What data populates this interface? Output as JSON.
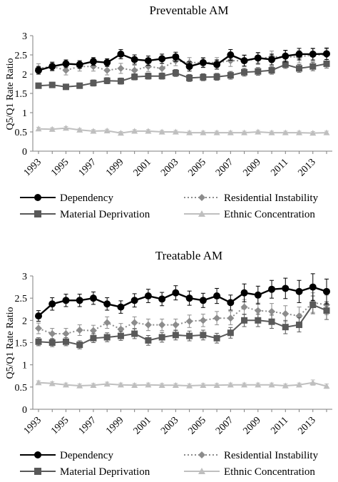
{
  "chart_data": [
    {
      "type": "line",
      "title": "Preventable AM",
      "ylabel": "Q5/Q1 Rate Ratio",
      "xlabel": "",
      "ylim": [
        0,
        3
      ],
      "yticks": [
        "0",
        "0.5",
        "1",
        "1.5",
        "2",
        "2.5",
        "3"
      ],
      "xticks": [
        "1993",
        "1995",
        "1997",
        "1999",
        "2001",
        "2003",
        "2005",
        "2007",
        "2009",
        "2011",
        "2013"
      ],
      "grid": false,
      "legend_position": "bottom",
      "x": [
        1993,
        1994,
        1995,
        1996,
        1997,
        1998,
        1999,
        2000,
        2001,
        2002,
        2003,
        2004,
        2005,
        2006,
        2007,
        2008,
        2009,
        2010,
        2011,
        2012,
        2013,
        2014
      ],
      "series": [
        {
          "name": "Dependency",
          "color": "#000000",
          "marker": "circle",
          "dash": "solid",
          "values": [
            2.1,
            2.2,
            2.27,
            2.25,
            2.33,
            2.3,
            2.52,
            2.38,
            2.35,
            2.4,
            2.45,
            2.2,
            2.3,
            2.25,
            2.5,
            2.35,
            2.42,
            2.38,
            2.47,
            2.52,
            2.52,
            2.53
          ],
          "err": [
            0.1,
            0.1,
            0.1,
            0.1,
            0.1,
            0.1,
            0.12,
            0.12,
            0.12,
            0.12,
            0.12,
            0.12,
            0.12,
            0.12,
            0.14,
            0.14,
            0.14,
            0.14,
            0.15,
            0.15,
            0.15,
            0.15
          ]
        },
        {
          "name": "Residential Instability",
          "color": "#8c8c8c",
          "marker": "diamond",
          "dash": "dotted",
          "values": [
            2.15,
            2.2,
            2.1,
            2.2,
            2.2,
            2.1,
            2.15,
            2.1,
            2.2,
            2.15,
            2.35,
            2.3,
            2.3,
            2.3,
            2.35,
            2.35,
            2.4,
            2.45,
            2.45,
            2.45,
            2.5,
            2.5
          ],
          "err": [
            0.12,
            0.12,
            0.12,
            0.12,
            0.12,
            0.12,
            0.13,
            0.13,
            0.13,
            0.13,
            0.13,
            0.13,
            0.13,
            0.13,
            0.15,
            0.15,
            0.15,
            0.15,
            0.16,
            0.16,
            0.16,
            0.16
          ]
        },
        {
          "name": "Material Deprivation",
          "color": "#595959",
          "marker": "square",
          "dash": "solid",
          "values": [
            1.7,
            1.72,
            1.67,
            1.7,
            1.77,
            1.83,
            1.82,
            1.93,
            1.95,
            1.95,
            2.03,
            1.9,
            1.92,
            1.93,
            1.97,
            2.05,
            2.07,
            2.1,
            2.25,
            2.15,
            2.2,
            2.27
          ],
          "err": [
            0.07,
            0.07,
            0.07,
            0.07,
            0.08,
            0.08,
            0.08,
            0.08,
            0.08,
            0.08,
            0.09,
            0.09,
            0.09,
            0.09,
            0.1,
            0.1,
            0.1,
            0.1,
            0.1,
            0.1,
            0.11,
            0.11
          ]
        },
        {
          "name": "Ethnic Concentration",
          "color": "#bfbfbf",
          "marker": "triangle",
          "dash": "solid",
          "values": [
            0.58,
            0.57,
            0.6,
            0.55,
            0.52,
            0.53,
            0.47,
            0.52,
            0.52,
            0.5,
            0.5,
            0.48,
            0.48,
            0.48,
            0.48,
            0.48,
            0.5,
            0.48,
            0.48,
            0.48,
            0.47,
            0.48
          ],
          "err": [
            0.04,
            0.04,
            0.04,
            0.04,
            0.04,
            0.04,
            0.04,
            0.04,
            0.04,
            0.04,
            0.04,
            0.04,
            0.04,
            0.04,
            0.04,
            0.04,
            0.04,
            0.04,
            0.04,
            0.04,
            0.04,
            0.04
          ]
        }
      ]
    },
    {
      "type": "line",
      "title": "Treatable AM",
      "ylabel": "Q5/Q1 Rate Ratio",
      "xlabel": "",
      "ylim": [
        0,
        3
      ],
      "yticks": [
        "0",
        "0.5",
        "1",
        "1.5",
        "2",
        "2.5",
        "3"
      ],
      "xticks": [
        "1993",
        "1995",
        "1997",
        "1999",
        "2001",
        "2003",
        "2005",
        "2007",
        "2009",
        "2011",
        "2013"
      ],
      "grid": false,
      "legend_position": "bottom",
      "x": [
        1993,
        1994,
        1995,
        1996,
        1997,
        1998,
        1999,
        2000,
        2001,
        2002,
        2003,
        2004,
        2005,
        2006,
        2007,
        2008,
        2009,
        2010,
        2011,
        2012,
        2013,
        2014
      ],
      "series": [
        {
          "name": "Dependency",
          "color": "#000000",
          "marker": "circle",
          "dash": "solid",
          "values": [
            2.1,
            2.37,
            2.45,
            2.45,
            2.5,
            2.37,
            2.3,
            2.45,
            2.55,
            2.48,
            2.62,
            2.5,
            2.45,
            2.55,
            2.4,
            2.62,
            2.57,
            2.7,
            2.72,
            2.65,
            2.75,
            2.65
          ],
          "err": [
            0.12,
            0.14,
            0.14,
            0.14,
            0.14,
            0.14,
            0.14,
            0.15,
            0.15,
            0.15,
            0.16,
            0.16,
            0.16,
            0.17,
            0.17,
            0.2,
            0.2,
            0.2,
            0.23,
            0.25,
            0.3,
            0.28
          ]
        },
        {
          "name": "Residential Instability",
          "color": "#8c8c8c",
          "marker": "diamond",
          "dash": "dotted",
          "values": [
            1.82,
            1.7,
            1.7,
            1.78,
            1.77,
            1.95,
            1.8,
            1.95,
            1.9,
            1.9,
            1.9,
            1.98,
            2.0,
            2.05,
            2.05,
            2.3,
            2.22,
            2.2,
            2.15,
            2.1,
            2.4,
            2.35
          ],
          "err": [
            0.12,
            0.12,
            0.12,
            0.12,
            0.12,
            0.13,
            0.13,
            0.13,
            0.13,
            0.13,
            0.13,
            0.14,
            0.14,
            0.15,
            0.15,
            0.17,
            0.17,
            0.18,
            0.18,
            0.2,
            0.22,
            0.22
          ]
        },
        {
          "name": "Material Deprivation",
          "color": "#595959",
          "marker": "square",
          "dash": "solid",
          "values": [
            1.52,
            1.5,
            1.52,
            1.45,
            1.6,
            1.62,
            1.65,
            1.7,
            1.55,
            1.62,
            1.67,
            1.65,
            1.67,
            1.6,
            1.72,
            2.0,
            2.0,
            1.97,
            1.85,
            1.9,
            2.35,
            2.22
          ],
          "err": [
            0.09,
            0.09,
            0.09,
            0.09,
            0.1,
            0.1,
            0.1,
            0.11,
            0.11,
            0.11,
            0.11,
            0.11,
            0.11,
            0.11,
            0.12,
            0.14,
            0.14,
            0.15,
            0.15,
            0.16,
            0.2,
            0.2
          ]
        },
        {
          "name": "Ethnic Concentration",
          "color": "#bfbfbf",
          "marker": "triangle",
          "dash": "solid",
          "values": [
            0.6,
            0.58,
            0.55,
            0.53,
            0.54,
            0.57,
            0.55,
            0.54,
            0.55,
            0.54,
            0.54,
            0.53,
            0.54,
            0.54,
            0.55,
            0.55,
            0.55,
            0.55,
            0.53,
            0.55,
            0.6,
            0.52
          ],
          "err": [
            0.04,
            0.04,
            0.04,
            0.04,
            0.04,
            0.04,
            0.04,
            0.04,
            0.04,
            0.04,
            0.04,
            0.04,
            0.04,
            0.04,
            0.04,
            0.04,
            0.04,
            0.04,
            0.04,
            0.04,
            0.06,
            0.05
          ]
        }
      ]
    }
  ]
}
